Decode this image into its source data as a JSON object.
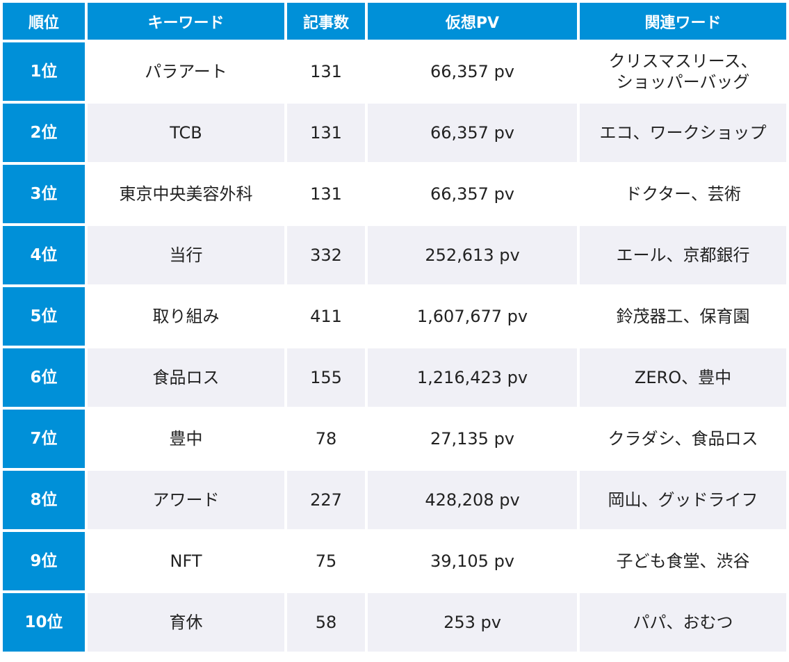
{
  "headers": [
    "順位",
    "キーワード",
    "記事数",
    "仮想PV",
    "関連ワード"
  ],
  "rows": [
    {
      "rank": "1位",
      "keyword": "パラアート",
      "articles": "131",
      "pv": "66,357 pv",
      "related": "クリスマスリース、\nショッパーバッグ"
    },
    {
      "rank": "2位",
      "keyword": "TCB",
      "articles": "131",
      "pv": "66,357 pv",
      "related": "エコ、ワークショップ"
    },
    {
      "rank": "3位",
      "keyword": "東京中央美容外科",
      "articles": "131",
      "pv": "66,357 pv",
      "related": "ドクター、芸術"
    },
    {
      "rank": "4位",
      "keyword": "当行",
      "articles": "332",
      "pv": "252,613 pv",
      "related": "エール、京都銀行"
    },
    {
      "rank": "5位",
      "keyword": "取り組み",
      "articles": "411",
      "pv": "1,607,677 pv",
      "related": "鈴茂器工、保育園"
    },
    {
      "rank": "6位",
      "keyword": "食品ロス",
      "articles": "155",
      "pv": "1,216,423 pv",
      "related": "ZERO、豊中"
    },
    {
      "rank": "7位",
      "keyword": "豊中",
      "articles": "78",
      "pv": "27,135 pv",
      "related": "クラダシ、食品ロス"
    },
    {
      "rank": "8位",
      "keyword": "アワード",
      "articles": "227",
      "pv": "428,208 pv",
      "related": "岡山、グッドライフ"
    },
    {
      "rank": "9位",
      "keyword": "NFT",
      "articles": "75",
      "pv": "39,105 pv",
      "related": "子ども食堂、渋谷"
    },
    {
      "rank": "10位",
      "keyword": "育休",
      "articles": "58",
      "pv": "253 pv",
      "related": "パパ、おむつ"
    }
  ]
}
